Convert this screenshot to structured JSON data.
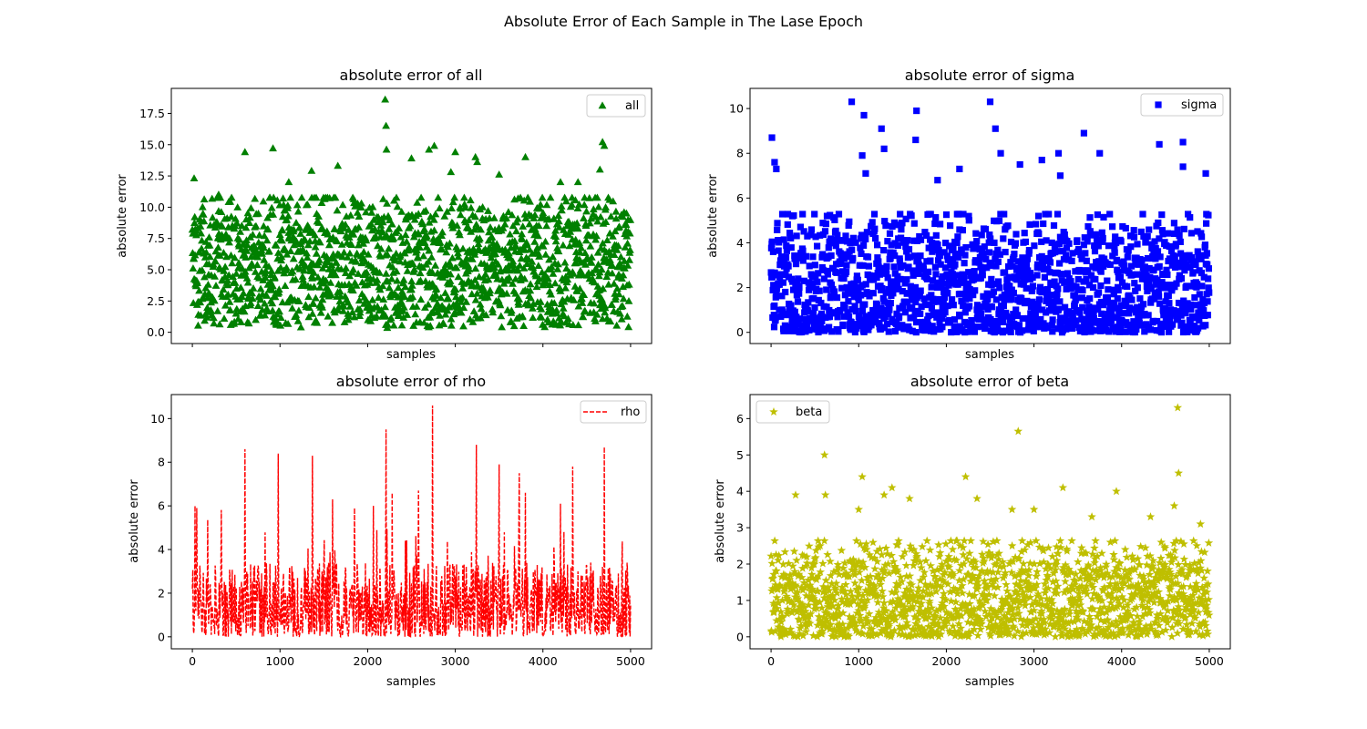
{
  "figure": {
    "suptitle": "Absolute Error of Each Sample in The Lase Epoch"
  },
  "chart_data": [
    {
      "id": "all",
      "type": "scatter",
      "title": "absolute error of all",
      "xlabel": "samples",
      "ylabel": "absolute error",
      "xlim": [
        -240,
        5240
      ],
      "ylim": [
        -0.9,
        19.5
      ],
      "xticks": [
        0,
        1000,
        2000,
        3000,
        4000,
        5000
      ],
      "show_xtick_labels": false,
      "yticks": [
        0.0,
        2.5,
        5.0,
        7.5,
        10.0,
        12.5,
        15.0,
        17.5
      ],
      "ytick_labels": [
        "0.0",
        "2.5",
        "5.0",
        "7.5",
        "10.0",
        "12.5",
        "15.0",
        "17.5"
      ],
      "legend": {
        "label": "all",
        "location": "upper right"
      },
      "marker": "triangle",
      "color": "#008000",
      "series_name": "all",
      "baseline_max": 9.5,
      "outliers": [
        {
          "x": 20,
          "y": 12.3
        },
        {
          "x": 600,
          "y": 14.4
        },
        {
          "x": 920,
          "y": 14.7
        },
        {
          "x": 1360,
          "y": 12.9
        },
        {
          "x": 1660,
          "y": 13.3
        },
        {
          "x": 2200,
          "y": 18.6
        },
        {
          "x": 2210,
          "y": 16.5
        },
        {
          "x": 2215,
          "y": 14.6
        },
        {
          "x": 2700,
          "y": 14.6
        },
        {
          "x": 2760,
          "y": 14.9
        },
        {
          "x": 3000,
          "y": 14.4
        },
        {
          "x": 3230,
          "y": 14.0
        },
        {
          "x": 3250,
          "y": 13.6
        },
        {
          "x": 3800,
          "y": 14.0
        },
        {
          "x": 4200,
          "y": 12.0
        },
        {
          "x": 4680,
          "y": 15.2
        },
        {
          "x": 4700,
          "y": 14.9
        },
        {
          "x": 4650,
          "y": 13.0
        },
        {
          "x": 2950,
          "y": 12.8
        },
        {
          "x": 3500,
          "y": 12.6
        },
        {
          "x": 4400,
          "y": 12.0
        },
        {
          "x": 300,
          "y": 11.0
        },
        {
          "x": 1100,
          "y": 12.0
        },
        {
          "x": 2500,
          "y": 13.9
        }
      ]
    },
    {
      "id": "sigma",
      "type": "scatter",
      "title": "absolute error of sigma",
      "xlabel": "samples",
      "ylabel": "absolute error",
      "xlim": [
        -240,
        5240
      ],
      "ylim": [
        -0.5,
        10.9
      ],
      "xticks": [
        0,
        1000,
        2000,
        3000,
        4000,
        5000
      ],
      "show_xtick_labels": false,
      "yticks": [
        0,
        2,
        4,
        6,
        8,
        10
      ],
      "ytick_labels": [
        "0",
        "2",
        "4",
        "6",
        "8",
        "10"
      ],
      "legend": {
        "label": "sigma",
        "location": "upper right"
      },
      "marker": "square",
      "color": "#0000ff",
      "series_name": "sigma",
      "baseline_max": 4.8,
      "outliers": [
        {
          "x": 10,
          "y": 8.7
        },
        {
          "x": 40,
          "y": 7.6
        },
        {
          "x": 60,
          "y": 7.3
        },
        {
          "x": 920,
          "y": 10.3
        },
        {
          "x": 1060,
          "y": 9.7
        },
        {
          "x": 1040,
          "y": 7.9
        },
        {
          "x": 1260,
          "y": 9.1
        },
        {
          "x": 1290,
          "y": 8.2
        },
        {
          "x": 1660,
          "y": 9.9
        },
        {
          "x": 1650,
          "y": 8.6
        },
        {
          "x": 2500,
          "y": 10.3
        },
        {
          "x": 2560,
          "y": 9.1
        },
        {
          "x": 2620,
          "y": 8.0
        },
        {
          "x": 3280,
          "y": 8.0
        },
        {
          "x": 3570,
          "y": 8.9
        },
        {
          "x": 3750,
          "y": 8.0
        },
        {
          "x": 4430,
          "y": 8.4
        },
        {
          "x": 4700,
          "y": 8.5
        },
        {
          "x": 4700,
          "y": 7.4
        },
        {
          "x": 4960,
          "y": 7.1
        },
        {
          "x": 1080,
          "y": 7.1
        },
        {
          "x": 2150,
          "y": 7.3
        },
        {
          "x": 2840,
          "y": 7.5
        },
        {
          "x": 3090,
          "y": 7.7
        },
        {
          "x": 1900,
          "y": 6.8
        },
        {
          "x": 3300,
          "y": 7.0
        }
      ]
    },
    {
      "id": "rho",
      "type": "line",
      "title": "absolute error of rho",
      "xlabel": "samples",
      "ylabel": "absolute error",
      "xlim": [
        -240,
        5240
      ],
      "ylim": [
        -0.55,
        11.1
      ],
      "xticks": [
        0,
        1000,
        2000,
        3000,
        4000,
        5000
      ],
      "xtick_labels": [
        "0",
        "1000",
        "2000",
        "3000",
        "4000",
        "5000"
      ],
      "show_xtick_labels": true,
      "yticks": [
        0,
        2,
        4,
        6,
        8,
        10
      ],
      "ytick_labels": [
        "0",
        "2",
        "4",
        "6",
        "8",
        "10"
      ],
      "legend": {
        "label": "rho",
        "location": "upper right"
      },
      "linestyle": "dashed",
      "color": "#ff0000",
      "series_name": "rho",
      "baseline_max": 3.4,
      "spikes": [
        {
          "x": 30,
          "y": 6.0
        },
        {
          "x": 50,
          "y": 5.9
        },
        {
          "x": 600,
          "y": 8.6
        },
        {
          "x": 980,
          "y": 8.4
        },
        {
          "x": 1370,
          "y": 8.3
        },
        {
          "x": 2210,
          "y": 9.5
        },
        {
          "x": 2740,
          "y": 10.6
        },
        {
          "x": 3240,
          "y": 8.8
        },
        {
          "x": 3500,
          "y": 7.9
        },
        {
          "x": 3730,
          "y": 7.5
        },
        {
          "x": 4340,
          "y": 7.8
        },
        {
          "x": 4700,
          "y": 8.7
        },
        {
          "x": 1600,
          "y": 6.3
        },
        {
          "x": 2580,
          "y": 6.7
        },
        {
          "x": 3800,
          "y": 6.6
        },
        {
          "x": 4200,
          "y": 6.1
        },
        {
          "x": 2280,
          "y": 6.6
        },
        {
          "x": 1850,
          "y": 5.9
        }
      ]
    },
    {
      "id": "beta",
      "type": "scatter",
      "title": "absolute error of beta",
      "xlabel": "samples",
      "ylabel": "absolute error",
      "xlim": [
        -240,
        5240
      ],
      "ylim": [
        -0.33,
        6.66
      ],
      "xticks": [
        0,
        1000,
        2000,
        3000,
        4000,
        5000
      ],
      "xtick_labels": [
        "0",
        "1000",
        "2000",
        "3000",
        "4000",
        "5000"
      ],
      "show_xtick_labels": true,
      "yticks": [
        0,
        1,
        2,
        3,
        4,
        5,
        6
      ],
      "ytick_labels": [
        "0",
        "1",
        "2",
        "3",
        "4",
        "5",
        "6"
      ],
      "legend": {
        "label": "beta",
        "location": "upper left"
      },
      "marker": "star",
      "color": "#bfbf00",
      "series_name": "beta",
      "baseline_max": 2.4,
      "outliers": [
        {
          "x": 610,
          "y": 5.0
        },
        {
          "x": 2820,
          "y": 5.65
        },
        {
          "x": 4640,
          "y": 6.3
        },
        {
          "x": 4650,
          "y": 4.5
        },
        {
          "x": 1040,
          "y": 4.4
        },
        {
          "x": 2220,
          "y": 4.4
        },
        {
          "x": 1380,
          "y": 4.1
        },
        {
          "x": 3330,
          "y": 4.1
        },
        {
          "x": 3940,
          "y": 4.0
        },
        {
          "x": 280,
          "y": 3.9
        },
        {
          "x": 620,
          "y": 3.9
        },
        {
          "x": 1290,
          "y": 3.9
        },
        {
          "x": 1580,
          "y": 3.8
        },
        {
          "x": 2350,
          "y": 3.8
        },
        {
          "x": 4600,
          "y": 3.6
        },
        {
          "x": 2750,
          "y": 3.5
        },
        {
          "x": 3000,
          "y": 3.5
        },
        {
          "x": 1000,
          "y": 3.5
        },
        {
          "x": 3660,
          "y": 3.3
        },
        {
          "x": 4330,
          "y": 3.3
        },
        {
          "x": 4900,
          "y": 3.1
        }
      ]
    }
  ]
}
